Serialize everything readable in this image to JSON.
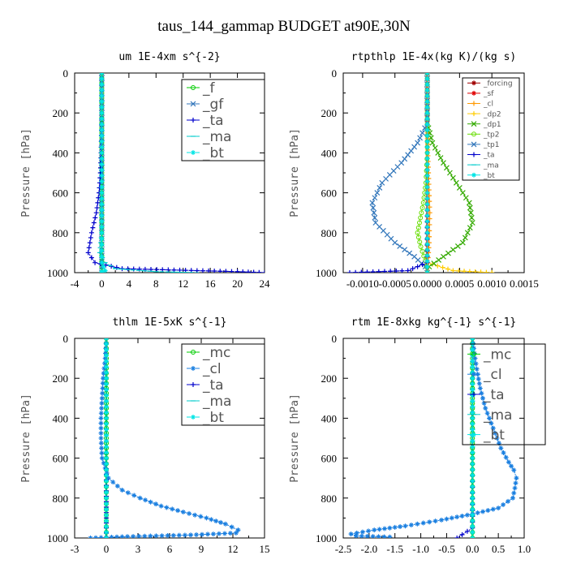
{
  "title": "taus_144_gammap  BUDGET at90E,30N",
  "colors": {
    "green": "#00cc00",
    "blue": "#1a7fe0",
    "navy": "#0000cc",
    "cyan": "#00cccc",
    "aqua": "#00e5e5",
    "red": "#e00000",
    "darkred": "#a00000",
    "orange": "#ff9900",
    "yellow": "#ffcc00",
    "lime": "#66dd00",
    "steel": "#3377bb"
  },
  "chart_data": [
    {
      "type": "line",
      "title": "um  1E-4xm s^{-2}",
      "ylabel": "Pressure [hPa]",
      "xlim": [
        -4,
        24
      ],
      "ylim": [
        1000,
        0
      ],
      "xticks": [
        -4,
        0,
        4,
        8,
        12,
        16,
        20,
        24
      ],
      "xtick_labels": [
        "-4",
        "0",
        "4",
        "8",
        "12",
        "16",
        "20",
        "24"
      ],
      "yticks": [
        0,
        200,
        400,
        600,
        800,
        1000
      ],
      "ytick_labels": [
        "0",
        "200",
        "400",
        "600",
        "800",
        "1000"
      ],
      "legend_position": "top-right",
      "legend_font": 17,
      "series": [
        {
          "name": "_f",
          "color": "#00cc00",
          "marker": "o",
          "x": [
            0,
            0,
            0,
            0,
            0,
            0,
            0,
            0,
            0,
            0
          ],
          "y": [
            0,
            100,
            200,
            300,
            400,
            500,
            600,
            700,
            800,
            1000
          ]
        },
        {
          "name": "_gf",
          "color": "#3377bb",
          "marker": "x",
          "x": [
            0,
            0,
            0,
            0,
            0,
            0,
            0,
            0,
            0,
            0
          ],
          "y": [
            0,
            100,
            200,
            300,
            400,
            500,
            600,
            700,
            800,
            1000
          ]
        },
        {
          "name": "_ta",
          "color": "#0000cc",
          "marker": "+",
          "x": [
            0,
            0,
            -0.1,
            -0.2,
            -0.4,
            -0.8,
            -1.5,
            -2.0,
            -1.0,
            3.0,
            20.0,
            24.0
          ],
          "y": [
            0,
            200,
            400,
            500,
            600,
            700,
            800,
            900,
            950,
            980,
            995,
            1000
          ]
        },
        {
          "name": "_ma",
          "color": "#00cccc",
          "marker": "-",
          "x": [
            0,
            0,
            0,
            0,
            0,
            -0.3,
            0.5,
            2,
            8,
            14
          ],
          "y": [
            0,
            200,
            400,
            600,
            800,
            900,
            950,
            980,
            995,
            1000
          ]
        },
        {
          "name": "_bt",
          "color": "#00e5e5",
          "marker": "*",
          "x": [
            0,
            0,
            0,
            0,
            0,
            0,
            0.5,
            0,
            0
          ],
          "y": [
            0,
            200,
            400,
            600,
            800,
            950,
            990,
            995,
            1000
          ]
        }
      ]
    },
    {
      "type": "line",
      "title": "rtpthlp  1E-4x(kg K)/(kg s)",
      "ylabel": "Pressure [hPa]",
      "xlim": [
        -0.0013,
        0.0015
      ],
      "ylim": [
        1000,
        0
      ],
      "xticks": [
        -0.001,
        -0.0005,
        0,
        0.0005,
        0.001,
        0.0015
      ],
      "xtick_labels": [
        "-0.0010",
        "-0.0005",
        "0.0000",
        "0.0005",
        "0.0010",
        "0.0015"
      ],
      "yticks": [
        0,
        200,
        400,
        600,
        800,
        1000
      ],
      "ytick_labels": [
        "0",
        "200",
        "400",
        "600",
        "800",
        "1000"
      ],
      "legend_position": "top-right",
      "legend_font": 9,
      "series": [
        {
          "name": "_forcing",
          "color": "#a00000",
          "marker": "*",
          "x": [
            0,
            0,
            0,
            0,
            0,
            0,
            0
          ],
          "y": [
            0,
            200,
            400,
            600,
            800,
            950,
            1000
          ]
        },
        {
          "name": "_sf",
          "color": "#e00000",
          "marker": "*",
          "x": [
            0,
            0,
            0,
            0,
            0,
            0
          ],
          "y": [
            0,
            200,
            400,
            600,
            800,
            1000
          ]
        },
        {
          "name": "_cl",
          "color": "#ff9900",
          "marker": "+",
          "x": [
            0,
            0,
            2e-05,
            4e-05,
            3e-05,
            1e-05,
            0
          ],
          "y": [
            0,
            300,
            500,
            700,
            850,
            950,
            1000
          ]
        },
        {
          "name": "_dp2",
          "color": "#ffcc00",
          "marker": "+",
          "x": [
            0,
            0,
            0,
            0.0004,
            0.001
          ],
          "y": [
            0,
            600,
            950,
            990,
            1000
          ]
        },
        {
          "name": "_dp1",
          "color": "#33aa00",
          "marker": "x",
          "x": [
            0,
            0,
            8e-05,
            0.00025,
            0.00045,
            0.00065,
            0.0007,
            0.00055,
            0.00025,
            3e-05,
            0
          ],
          "y": [
            0,
            250,
            350,
            450,
            550,
            650,
            750,
            850,
            920,
            970,
            1000
          ]
        },
        {
          "name": "_tp2",
          "color": "#66dd00",
          "marker": "o",
          "x": [
            0,
            0,
            -2e-05,
            -6e-05,
            -0.00012,
            -0.00015,
            -0.0001,
            -3e-05,
            0
          ],
          "y": [
            0,
            400,
            550,
            650,
            750,
            800,
            870,
            940,
            1000
          ]
        },
        {
          "name": "_tp1",
          "color": "#3377bb",
          "marker": "x",
          "x": [
            0,
            0,
            -0.00015,
            -0.0004,
            -0.0007,
            -0.00085,
            -0.0008,
            -0.0005,
            -0.0002,
            -3e-05,
            0
          ],
          "y": [
            0,
            250,
            350,
            450,
            550,
            650,
            750,
            850,
            920,
            970,
            1000
          ]
        },
        {
          "name": "_ta",
          "color": "#0000cc",
          "marker": "+",
          "x": [
            0,
            0,
            0,
            -0.0003,
            -0.0012
          ],
          "y": [
            0,
            600,
            950,
            990,
            1000
          ]
        },
        {
          "name": "_ma",
          "color": "#00cccc",
          "marker": "-",
          "x": [
            0,
            0,
            0
          ],
          "y": [
            0,
            600,
            1000
          ]
        },
        {
          "name": "_bt",
          "color": "#00e5e5",
          "marker": "*",
          "x": [
            0,
            0,
            0
          ],
          "y": [
            0,
            600,
            1000
          ]
        }
      ]
    },
    {
      "type": "line",
      "title": "thlm  1E-5xK s^{-1}",
      "ylabel": "Pressure [hPa]",
      "xlim": [
        -3,
        15
      ],
      "ylim": [
        1000,
        0
      ],
      "xticks": [
        -3,
        0,
        3,
        6,
        9,
        12,
        15
      ],
      "xtick_labels": [
        "-3",
        "0",
        "3",
        "6",
        "9",
        "12",
        "15"
      ],
      "yticks": [
        0,
        200,
        400,
        600,
        800,
        1000
      ],
      "ytick_labels": [
        "0",
        "200",
        "400",
        "600",
        "800",
        "1000"
      ],
      "legend_position": "top-right",
      "legend_font": 17,
      "series": [
        {
          "name": "_mc",
          "color": "#00cc00",
          "marker": "o",
          "x": [
            0,
            0,
            0,
            0,
            0,
            0,
            0,
            0,
            0
          ],
          "y": [
            0,
            100,
            200,
            300,
            400,
            500,
            600,
            800,
            1000
          ]
        },
        {
          "name": "_cl",
          "color": "#1a7fe0",
          "marker": "*",
          "x": [
            0,
            -0.1,
            -0.3,
            -0.4,
            -0.5,
            -0.5,
            -0.4,
            0.2,
            1.5,
            3.2,
            5.2,
            7.3,
            9.5,
            11.3,
            12.5,
            12.3,
            8.0,
            2.0,
            -1.5
          ],
          "y": [
            0,
            100,
            200,
            300,
            400,
            500,
            600,
            700,
            760,
            800,
            840,
            870,
            900,
            930,
            960,
            975,
            985,
            993,
            1000
          ]
        },
        {
          "name": "_ta",
          "color": "#0000cc",
          "marker": "+",
          "x": [
            0,
            0,
            0,
            0,
            0
          ],
          "y": [
            0,
            200,
            600,
            900,
            1000
          ]
        },
        {
          "name": "_ma",
          "color": "#00cccc",
          "marker": "-",
          "x": [
            0,
            0,
            0,
            0
          ],
          "y": [
            0,
            200,
            600,
            1000
          ]
        },
        {
          "name": "_bt",
          "color": "#00e5e5",
          "marker": "*",
          "x": [
            0,
            0,
            0,
            0
          ],
          "y": [
            0,
            200,
            600,
            1000
          ]
        }
      ]
    },
    {
      "type": "line",
      "title": "rtm  1E-8xkg kg^{-1} s^{-1}",
      "ylabel": "Pressure [hPa]",
      "xlim": [
        -2.5,
        1.0
      ],
      "ylim": [
        1000,
        0
      ],
      "xticks": [
        -2.5,
        -2.0,
        -1.5,
        -1.0,
        -0.5,
        0.0,
        0.5,
        1.0
      ],
      "xtick_labels": [
        "-2.5",
        "-2.0",
        "-1.5",
        "-1.0",
        "-0.5",
        "0.0",
        "0.5",
        "1.0"
      ],
      "yticks": [
        0,
        200,
        400,
        600,
        800,
        1000
      ],
      "ytick_labels": [
        "0",
        "200",
        "400",
        "600",
        "800",
        "1000"
      ],
      "legend_position": "top-right",
      "legend_font": 17,
      "series": [
        {
          "name": "_mc",
          "color": "#00cc00",
          "marker": "o",
          "x": [
            0,
            0,
            0,
            0,
            0,
            0,
            0,
            0,
            0
          ],
          "y": [
            0,
            100,
            200,
            300,
            400,
            500,
            600,
            800,
            1000
          ]
        },
        {
          "name": "_cl",
          "color": "#1a7fe0",
          "marker": "*",
          "x": [
            0,
            0.05,
            0.1,
            0.15,
            0.25,
            0.4,
            0.55,
            0.7,
            0.8,
            0.85,
            0.82,
            0.78,
            0.5,
            0,
            -0.6,
            -1.3,
            -1.9,
            -2.35,
            -2.25,
            -1.6
          ],
          "y": [
            0,
            100,
            180,
            250,
            350,
            450,
            550,
            620,
            660,
            700,
            750,
            800,
            850,
            880,
            910,
            940,
            960,
            980,
            990,
            995
          ]
        },
        {
          "name": "_ta",
          "color": "#0000cc",
          "marker": "+",
          "x": [
            0,
            0,
            0,
            0,
            -0.3
          ],
          "y": [
            0,
            200,
            600,
            950,
            1000
          ]
        },
        {
          "name": "_ma",
          "color": "#00cccc",
          "marker": "-",
          "x": [
            0,
            0,
            0,
            0
          ],
          "y": [
            0,
            200,
            600,
            1000
          ]
        },
        {
          "name": "_bt",
          "color": "#00e5e5",
          "marker": "*",
          "x": [
            0,
            0,
            0,
            0
          ],
          "y": [
            0,
            200,
            600,
            1000
          ]
        }
      ]
    }
  ]
}
